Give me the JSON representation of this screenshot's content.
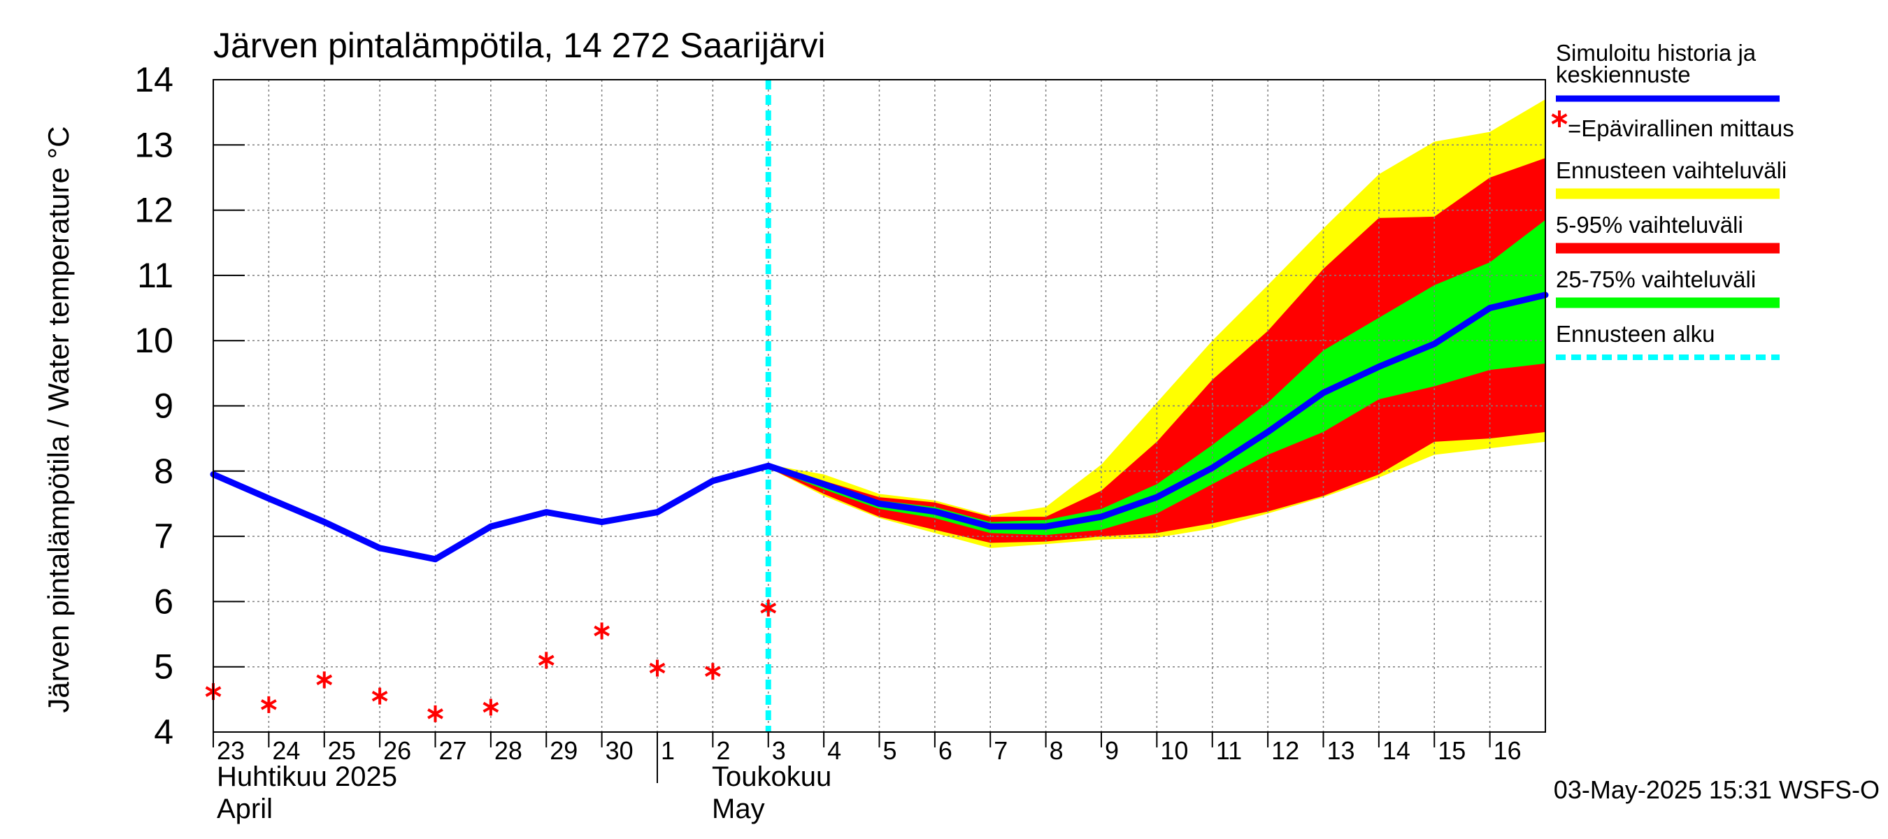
{
  "footer": {
    "timestamp": "03-May-2025 15:31 WSFS-O"
  },
  "colors": {
    "history": "#0000ff",
    "observation": "#ff0000",
    "forecast_range": "#ffff00",
    "p5_95": "#ff0000",
    "p25_75": "#00ff00",
    "forecast_start": "#00ffff",
    "grid": "#7f7f7f"
  },
  "chart_data": {
    "type": "line",
    "title": "Järven pintalämpötila, 14 272 Saarijärvi",
    "ylabel": "Järven pintalämpötila / Water temperature °C",
    "ylim": [
      4,
      14
    ],
    "yticks": [
      "4",
      "5",
      "6",
      "7",
      "8",
      "9",
      "10",
      "11",
      "12",
      "13",
      "14"
    ],
    "grid": true,
    "legend_position": "right",
    "x_tick_labels": [
      "23",
      "24",
      "25",
      "26",
      "27",
      "28",
      "29",
      "30",
      "1",
      "2",
      "3",
      "4",
      "5",
      "6",
      "7",
      "8",
      "9",
      "10",
      "11",
      "12",
      "13",
      "14",
      "15",
      "16"
    ],
    "month_labels": [
      {
        "fi": "Huhtikuu  2025",
        "en": "April"
      },
      {
        "fi": "Toukokuu",
        "en": "May"
      }
    ],
    "forecast_start_day": 10,
    "legend": [
      {
        "key": "history",
        "text": "Simuloitu historia ja",
        "text2": "keskiennuste"
      },
      {
        "key": "observation",
        "text": "=Epävirallinen mittaus"
      },
      {
        "key": "forecast_range",
        "text": "Ennusteen vaihteluväli"
      },
      {
        "key": "p5_95",
        "text": "5-95% vaihteluväli"
      },
      {
        "key": "p25_75",
        "text": "25-75% vaihteluväli"
      },
      {
        "key": "forecast_start",
        "text": "Ennusteen alku"
      }
    ],
    "series": {
      "history": {
        "x": [
          0,
          1,
          2,
          3,
          4,
          5,
          6,
          7,
          8,
          9,
          10,
          11,
          12,
          13,
          14,
          15,
          16,
          17,
          18,
          19,
          20,
          21,
          22,
          23,
          24
        ],
        "y": [
          7.95,
          7.58,
          7.22,
          6.82,
          6.65,
          7.15,
          7.37,
          7.22,
          7.37,
          7.85,
          8.08,
          7.8,
          7.5,
          7.38,
          7.15,
          7.15,
          7.3,
          7.6,
          8.05,
          8.6,
          9.2,
          9.6,
          9.95,
          10.5,
          10.7
        ]
      },
      "observations": {
        "x": [
          0,
          1,
          2,
          3,
          4,
          5,
          6,
          7,
          8,
          9,
          10
        ],
        "y": [
          4.62,
          4.42,
          4.8,
          4.55,
          4.28,
          4.38,
          5.1,
          5.55,
          4.98,
          4.93,
          5.9
        ]
      },
      "forecast_range": {
        "x": [
          10,
          11,
          12,
          13,
          14,
          15,
          16,
          17,
          18,
          19,
          20,
          21,
          22,
          23,
          24
        ],
        "upper": [
          8.1,
          7.95,
          7.65,
          7.55,
          7.32,
          7.45,
          8.1,
          9.05,
          10.0,
          10.85,
          11.72,
          12.55,
          13.05,
          13.2,
          13.7
        ],
        "lower": [
          8.05,
          7.62,
          7.28,
          7.05,
          6.82,
          6.88,
          6.95,
          6.98,
          7.12,
          7.35,
          7.6,
          7.9,
          8.25,
          8.35,
          8.45
        ]
      },
      "p5_95": {
        "x": [
          10,
          11,
          12,
          13,
          14,
          15,
          16,
          17,
          18,
          19,
          20,
          21,
          22,
          23,
          24
        ],
        "upper": [
          8.1,
          7.85,
          7.6,
          7.52,
          7.3,
          7.3,
          7.7,
          8.45,
          9.4,
          10.15,
          11.1,
          11.88,
          11.9,
          12.5,
          12.8
        ],
        "lower": [
          8.05,
          7.65,
          7.3,
          7.1,
          6.9,
          6.92,
          7.0,
          7.05,
          7.2,
          7.38,
          7.62,
          7.95,
          8.45,
          8.5,
          8.6
        ]
      },
      "p25_75": {
        "x": [
          10,
          11,
          12,
          13,
          14,
          15,
          16,
          17,
          18,
          19,
          20,
          21,
          22,
          23,
          24
        ],
        "upper": [
          8.1,
          7.82,
          7.55,
          7.45,
          7.22,
          7.25,
          7.42,
          7.8,
          8.4,
          9.05,
          9.85,
          10.35,
          10.85,
          11.2,
          11.85
        ],
        "lower": [
          8.05,
          7.72,
          7.42,
          7.28,
          7.05,
          7.02,
          7.1,
          7.35,
          7.8,
          8.25,
          8.6,
          9.1,
          9.3,
          9.55,
          9.65
        ]
      }
    }
  }
}
